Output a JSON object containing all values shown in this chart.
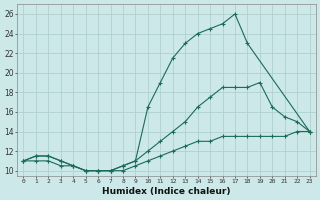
{
  "xlabel": "Humidex (Indice chaleur)",
  "bg_color": "#cce8e8",
  "grid_color": "#b0d0d0",
  "line_color": "#1a6b5a",
  "x_ticks": [
    0,
    1,
    2,
    3,
    4,
    5,
    6,
    7,
    8,
    9,
    10,
    11,
    12,
    13,
    14,
    15,
    16,
    17,
    18,
    19,
    20,
    21,
    22,
    23
  ],
  "y_ticks": [
    10,
    12,
    14,
    16,
    18,
    20,
    22,
    24,
    26
  ],
  "xlim": [
    -0.5,
    23.5
  ],
  "ylim": [
    9.5,
    27.0
  ],
  "line1_x": [
    0,
    1,
    2,
    3,
    4,
    5,
    6,
    7,
    8,
    9,
    10,
    11,
    12,
    13,
    14,
    15,
    16,
    17,
    18,
    23
  ],
  "line1_y": [
    11.0,
    11.5,
    11.5,
    11.0,
    10.5,
    10.0,
    10.0,
    10.0,
    10.5,
    11.0,
    16.5,
    19.0,
    21.5,
    23.0,
    24.0,
    24.5,
    25.0,
    26.0,
    23.0,
    14.0
  ],
  "line2_x": [
    0,
    1,
    2,
    3,
    4,
    5,
    6,
    7,
    8,
    9,
    10,
    11,
    12,
    13,
    14,
    15,
    16,
    17,
    18,
    19,
    20,
    21,
    22,
    23
  ],
  "line2_y": [
    11.0,
    11.5,
    11.5,
    11.0,
    10.5,
    10.0,
    10.0,
    10.0,
    10.5,
    11.0,
    12.0,
    13.0,
    14.0,
    15.0,
    16.5,
    17.5,
    18.5,
    18.5,
    18.5,
    19.0,
    16.5,
    15.5,
    15.0,
    14.0
  ],
  "line3_x": [
    0,
    1,
    2,
    3,
    4,
    5,
    6,
    7,
    8,
    9,
    10,
    11,
    12,
    13,
    14,
    15,
    16,
    17,
    18,
    19,
    20,
    21,
    22,
    23
  ],
  "line3_y": [
    11.0,
    11.0,
    11.0,
    10.5,
    10.5,
    10.0,
    10.0,
    10.0,
    10.0,
    10.5,
    11.0,
    11.5,
    12.0,
    12.5,
    13.0,
    13.0,
    13.5,
    13.5,
    13.5,
    13.5,
    13.5,
    13.5,
    14.0,
    14.0
  ]
}
